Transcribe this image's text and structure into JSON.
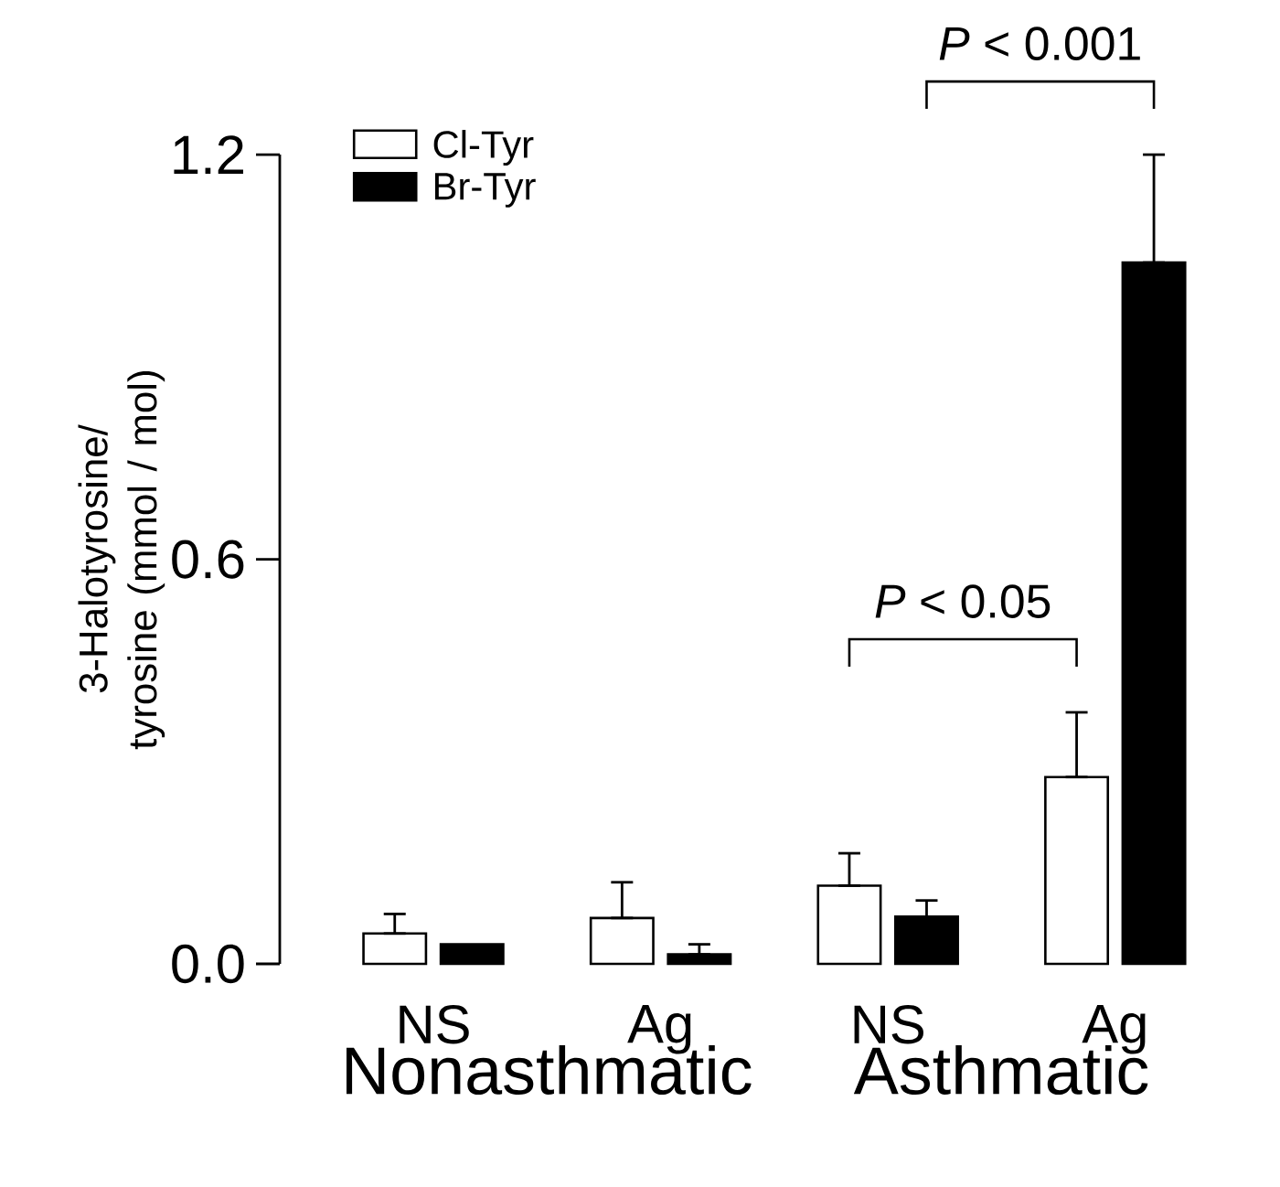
{
  "chart_data": {
    "type": "bar",
    "ylabel": "3-Halotyrosine/ tyrosine (mmol / mol)",
    "categories": [
      "NS",
      "Ag",
      "NS",
      "Ag"
    ],
    "series": [
      {
        "name": "Cl-Tyr",
        "color": "#ffffff",
        "values": [
          0.045,
          0.068,
          0.116,
          0.277
        ],
        "errors": [
          [
            0.045,
            0.074
          ],
          [
            0.068,
            0.121
          ],
          [
            0.116,
            0.164
          ],
          [
            0.277,
            0.373
          ]
        ]
      },
      {
        "name": "Br-Tyr",
        "color": "#000000",
        "values": [
          0.029,
          0.014,
          0.07,
          1.04
        ],
        "errors": [
          null,
          [
            0.014,
            0.029
          ],
          [
            0.07,
            0.094
          ],
          [
            1.04,
            1.2
          ]
        ]
      }
    ],
    "ylim": [
      0,
      1.2
    ],
    "yticks": [
      {
        "value": 0,
        "label": "0.0"
      },
      0.6,
      1.2
    ],
    "annotations": [
      "Nonasthmatic",
      "Asthmatic",
      "*P* < 0.05",
      "*P* < 0.001"
    ],
    "legend": "top left",
    "grid": false
  }
}
